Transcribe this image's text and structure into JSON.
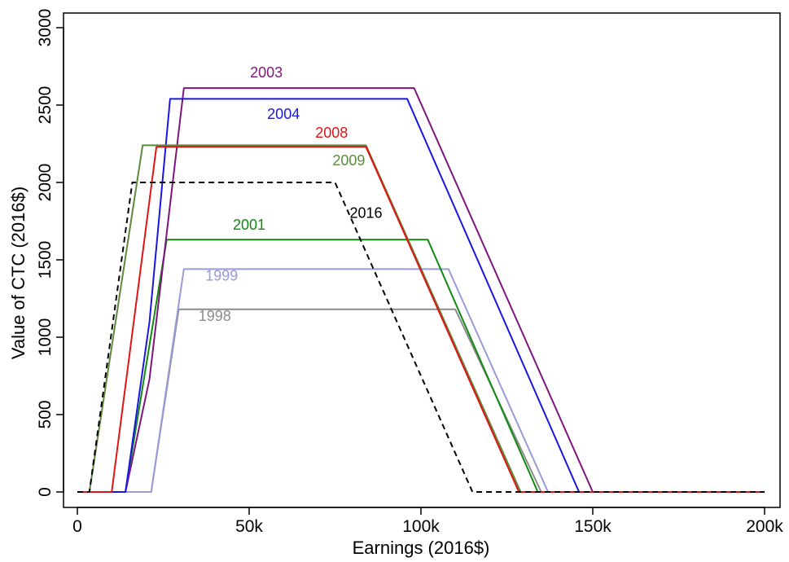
{
  "chart_data": {
    "type": "line",
    "title": "",
    "xlabel": "Earnings (2016$)",
    "ylabel": "Value of CTC (2016$)",
    "xlim": [
      0,
      200000
    ],
    "ylim": [
      0,
      3000
    ],
    "x_ticks": [
      {
        "value": 0,
        "label": "0"
      },
      {
        "value": 50000,
        "label": "50k"
      },
      {
        "value": 100000,
        "label": "100k"
      },
      {
        "value": 150000,
        "label": "150k"
      },
      {
        "value": 200000,
        "label": "200k"
      }
    ],
    "y_ticks": [
      {
        "value": 0,
        "label": "0"
      },
      {
        "value": 500,
        "label": "500"
      },
      {
        "value": 1000,
        "label": "1000"
      },
      {
        "value": 1500,
        "label": "1500"
      },
      {
        "value": 2000,
        "label": "2000"
      },
      {
        "value": 2500,
        "label": "2500"
      },
      {
        "value": 3000,
        "label": "3000"
      }
    ],
    "grid": false,
    "legend": "none",
    "series": [
      {
        "name": "1998",
        "color": "#8c8c8c",
        "dashed": false,
        "points": [
          [
            0,
            0
          ],
          [
            21500,
            0
          ],
          [
            29500,
            1180
          ],
          [
            110000,
            1180
          ],
          [
            135000,
            0
          ],
          [
            200000,
            0
          ]
        ],
        "label_at": [
          40000,
          1105
        ]
      },
      {
        "name": "1999",
        "color": "#9a9ad6",
        "dashed": false,
        "points": [
          [
            0,
            0
          ],
          [
            21500,
            0
          ],
          [
            31000,
            1440
          ],
          [
            108000,
            1440
          ],
          [
            137000,
            0
          ],
          [
            200000,
            0
          ]
        ],
        "label_at": [
          42000,
          1365
        ]
      },
      {
        "name": "2001",
        "color": "#118a11",
        "dashed": false,
        "points": [
          [
            0,
            0
          ],
          [
            14000,
            0
          ],
          [
            26000,
            1630
          ],
          [
            102000,
            1630
          ],
          [
            134000,
            0
          ],
          [
            200000,
            0
          ]
        ],
        "label_at": [
          50000,
          1695
        ]
      },
      {
        "name": "2003",
        "color": "#7d157d",
        "dashed": false,
        "points": [
          [
            0,
            0
          ],
          [
            14000,
            0
          ],
          [
            21000,
            730
          ],
          [
            31000,
            2610
          ],
          [
            98000,
            2610
          ],
          [
            150000,
            0
          ],
          [
            200000,
            0
          ]
        ],
        "label_at": [
          55000,
          2680
        ]
      },
      {
        "name": "2004",
        "color": "#1717e0",
        "dashed": false,
        "points": [
          [
            0,
            0
          ],
          [
            14000,
            0
          ],
          [
            21000,
            1100
          ],
          [
            27000,
            2540
          ],
          [
            96000,
            2540
          ],
          [
            146000,
            0
          ],
          [
            200000,
            0
          ]
        ],
        "label_at": [
          60000,
          2410
        ]
      },
      {
        "name": "2009",
        "color": "#5b8a3c",
        "dashed": false,
        "points": [
          [
            0,
            0
          ],
          [
            3500,
            0
          ],
          [
            19000,
            2240
          ],
          [
            84000,
            2240
          ],
          [
            129000,
            0
          ],
          [
            200000,
            0
          ]
        ],
        "label_at": [
          79000,
          2110
        ]
      },
      {
        "name": "2008",
        "color": "#e01414",
        "dashed": false,
        "points": [
          [
            0,
            0
          ],
          [
            10000,
            0
          ],
          [
            23000,
            2230
          ],
          [
            84000,
            2230
          ],
          [
            128500,
            0
          ],
          [
            200000,
            0
          ]
        ],
        "label_at": [
          74000,
          2290
        ]
      },
      {
        "name": "2016",
        "color": "#000000",
        "dashed": true,
        "points": [
          [
            0,
            0
          ],
          [
            3500,
            0
          ],
          [
            16000,
            2000
          ],
          [
            75000,
            2000
          ],
          [
            115000,
            0
          ],
          [
            200000,
            0
          ]
        ],
        "label_at": [
          84000,
          1770
        ]
      }
    ]
  }
}
